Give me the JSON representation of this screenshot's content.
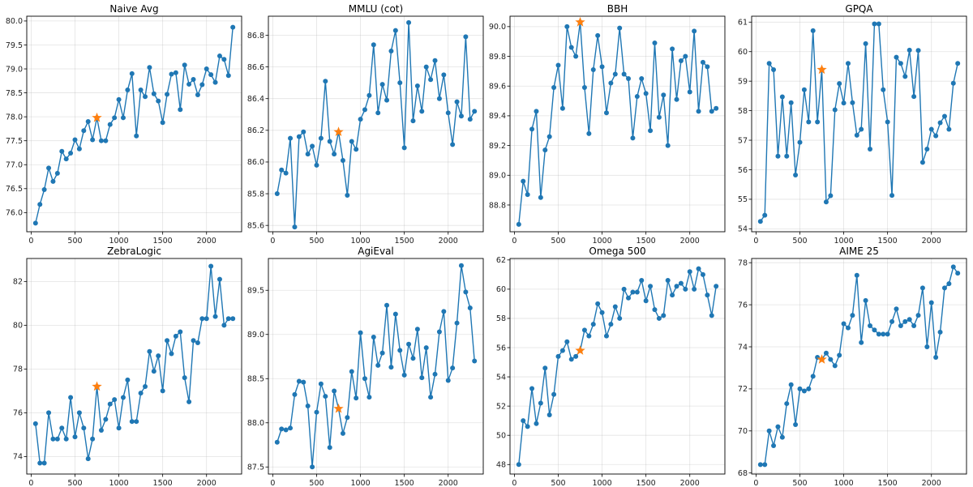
{
  "colors": {
    "series": "#1f77b4",
    "marker": "#ff7f0e"
  },
  "chart_data": [
    {
      "type": "line",
      "title": "Naive Avg",
      "grid": true,
      "xlim": [
        -50,
        2400
      ],
      "ylim": [
        75.6,
        80.1
      ],
      "xticks": [
        0,
        500,
        1000,
        1500,
        2000
      ],
      "xtick_labels": [
        "0",
        "500",
        "1000",
        "1500",
        "2000"
      ],
      "yticks": [
        76.0,
        76.5,
        77.0,
        77.5,
        78.0,
        78.5,
        79.0,
        79.5,
        80.0
      ],
      "ytick_labels": [
        "76.0",
        "76.5",
        "77.0",
        "77.5",
        "78.0",
        "78.5",
        "79.0",
        "79.5",
        "80.0"
      ],
      "x": [
        50,
        100,
        150,
        200,
        250,
        300,
        350,
        400,
        450,
        500,
        550,
        600,
        650,
        700,
        750,
        800,
        850,
        900,
        950,
        1000,
        1050,
        1100,
        1150,
        1200,
        1250,
        1300,
        1350,
        1400,
        1450,
        1500,
        1550,
        1600,
        1650,
        1700,
        1750,
        1800,
        1850,
        1900,
        1950,
        2000,
        2050,
        2100,
        2150,
        2200,
        2250,
        2300
      ],
      "y": [
        75.78,
        76.17,
        76.48,
        76.93,
        76.65,
        76.82,
        77.28,
        77.12,
        77.24,
        77.52,
        77.33,
        77.71,
        77.9,
        77.52,
        77.98,
        77.5,
        77.5,
        77.84,
        77.98,
        78.36,
        77.98,
        78.56,
        78.9,
        77.6,
        78.56,
        78.42,
        79.03,
        78.48,
        78.33,
        77.88,
        78.47,
        78.89,
        78.92,
        78.15,
        79.08,
        78.68,
        78.78,
        78.46,
        78.67,
        79.0,
        78.88,
        78.72,
        79.27,
        79.2,
        78.86,
        79.87
      ],
      "highlight": {
        "x": 750,
        "y": 77.98
      }
    },
    {
      "type": "line",
      "title": "MMLU (cot)",
      "grid": true,
      "xlim": [
        -50,
        2400
      ],
      "ylim": [
        85.56,
        86.92
      ],
      "xticks": [
        0,
        500,
        1000,
        1500,
        2000
      ],
      "xtick_labels": [
        "0",
        "500",
        "1000",
        "1500",
        "2000"
      ],
      "yticks": [
        85.6,
        85.8,
        86.0,
        86.2,
        86.4,
        86.6,
        86.8
      ],
      "ytick_labels": [
        "85.6",
        "85.8",
        "86.0",
        "86.2",
        "86.4",
        "86.6",
        "86.8"
      ],
      "x": [
        50,
        100,
        150,
        200,
        250,
        300,
        350,
        400,
        450,
        500,
        550,
        600,
        650,
        700,
        750,
        800,
        850,
        900,
        950,
        1000,
        1050,
        1100,
        1150,
        1200,
        1250,
        1300,
        1350,
        1400,
        1450,
        1500,
        1550,
        1600,
        1650,
        1700,
        1750,
        1800,
        1850,
        1900,
        1950,
        2000,
        2050,
        2100,
        2150,
        2200,
        2250,
        2300
      ],
      "y": [
        85.8,
        85.95,
        85.93,
        86.15,
        85.59,
        86.16,
        86.19,
        86.05,
        86.1,
        85.98,
        86.15,
        86.51,
        86.13,
        86.05,
        86.19,
        86.01,
        85.79,
        86.13,
        86.08,
        86.27,
        86.33,
        86.42,
        86.74,
        86.31,
        86.49,
        86.39,
        86.7,
        86.83,
        86.5,
        86.09,
        86.88,
        86.26,
        86.48,
        86.32,
        86.6,
        86.52,
        86.64,
        86.4,
        86.55,
        86.31,
        86.11,
        86.38,
        86.29,
        86.79,
        86.27,
        86.32
      ],
      "highlight": {
        "x": 750,
        "y": 86.19
      }
    },
    {
      "type": "line",
      "title": "BBH",
      "grid": true,
      "xlim": [
        -50,
        2400
      ],
      "ylim": [
        88.62,
        90.07
      ],
      "xticks": [
        0,
        500,
        1000,
        1500,
        2000
      ],
      "xtick_labels": [
        "0",
        "500",
        "1000",
        "1500",
        "2000"
      ],
      "yticks": [
        88.8,
        89.0,
        89.2,
        89.4,
        89.6,
        89.8,
        90.0
      ],
      "ytick_labels": [
        "88.8",
        "89.0",
        "89.2",
        "89.4",
        "89.6",
        "89.8",
        "90.0"
      ],
      "x": [
        50,
        100,
        150,
        200,
        250,
        300,
        350,
        400,
        450,
        500,
        550,
        600,
        650,
        700,
        750,
        800,
        850,
        900,
        950,
        1000,
        1050,
        1100,
        1150,
        1200,
        1250,
        1300,
        1350,
        1400,
        1450,
        1500,
        1550,
        1600,
        1650,
        1700,
        1750,
        1800,
        1850,
        1900,
        1950,
        2000,
        2050,
        2100,
        2150,
        2200,
        2250,
        2300
      ],
      "y": [
        88.67,
        88.96,
        88.87,
        89.31,
        89.43,
        88.85,
        89.17,
        89.26,
        89.59,
        89.74,
        89.45,
        90.0,
        89.86,
        89.8,
        90.03,
        89.59,
        89.28,
        89.71,
        89.94,
        89.73,
        89.42,
        89.62,
        89.68,
        89.99,
        89.68,
        89.65,
        89.25,
        89.53,
        89.65,
        89.55,
        89.3,
        89.89,
        89.39,
        89.54,
        89.2,
        89.85,
        89.51,
        89.77,
        89.8,
        89.56,
        89.97,
        89.43,
        89.76,
        89.73,
        89.43,
        89.45
      ],
      "highlight": {
        "x": 750,
        "y": 90.03
      }
    },
    {
      "type": "line",
      "title": "GPQA",
      "grid": true,
      "xlim": [
        -50,
        2400
      ],
      "ylim": [
        53.9,
        61.2
      ],
      "xticks": [
        0,
        500,
        1000,
        1500,
        2000
      ],
      "xtick_labels": [
        "0",
        "500",
        "1000",
        "1500",
        "2000"
      ],
      "yticks": [
        54,
        55,
        56,
        57,
        58,
        59,
        60,
        61
      ],
      "ytick_labels": [
        "54",
        "55",
        "56",
        "57",
        "58",
        "59",
        "60",
        "61"
      ],
      "x": [
        50,
        100,
        150,
        200,
        250,
        300,
        350,
        400,
        450,
        500,
        550,
        600,
        650,
        700,
        750,
        800,
        850,
        900,
        950,
        1000,
        1050,
        1100,
        1150,
        1200,
        1250,
        1300,
        1350,
        1400,
        1450,
        1500,
        1550,
        1600,
        1650,
        1700,
        1750,
        1800,
        1850,
        1900,
        1950,
        2000,
        2050,
        2100,
        2150,
        2200,
        2250,
        2300
      ],
      "y": [
        54.25,
        54.46,
        59.6,
        59.39,
        56.46,
        58.47,
        56.46,
        58.27,
        55.82,
        56.93,
        58.71,
        57.62,
        60.71,
        57.62,
        59.39,
        54.91,
        55.12,
        58.03,
        58.92,
        58.26,
        59.6,
        58.27,
        57.17,
        57.37,
        60.27,
        56.7,
        60.94,
        60.94,
        58.71,
        57.62,
        55.13,
        59.81,
        59.6,
        59.16,
        60.05,
        58.48,
        60.04,
        56.25,
        56.7,
        57.37,
        57.15,
        57.59,
        57.81,
        57.37,
        58.93,
        59.6
      ],
      "highlight": {
        "x": 750,
        "y": 59.39
      }
    },
    {
      "type": "line",
      "title": "ZebraLogic",
      "grid": true,
      "xlim": [
        -50,
        2400
      ],
      "ylim": [
        73.2,
        83.05
      ],
      "xticks": [
        0,
        500,
        1000,
        1500,
        2000
      ],
      "xtick_labels": [
        "0",
        "500",
        "1000",
        "1500",
        "2000"
      ],
      "yticks": [
        74,
        76,
        78,
        80,
        82
      ],
      "ytick_labels": [
        "74",
        "76",
        "78",
        "80",
        "82"
      ],
      "x": [
        50,
        100,
        150,
        200,
        250,
        300,
        350,
        400,
        450,
        500,
        550,
        600,
        650,
        700,
        750,
        800,
        850,
        900,
        950,
        1000,
        1050,
        1100,
        1150,
        1200,
        1250,
        1300,
        1350,
        1400,
        1450,
        1500,
        1550,
        1600,
        1650,
        1700,
        1750,
        1800,
        1850,
        1900,
        1950,
        2000,
        2050,
        2100,
        2150,
        2200,
        2250,
        2300
      ],
      "y": [
        75.5,
        73.7,
        73.7,
        76.0,
        74.8,
        74.8,
        75.3,
        74.8,
        76.7,
        74.9,
        76.0,
        75.3,
        73.9,
        74.8,
        77.2,
        75.2,
        75.7,
        76.4,
        76.6,
        75.3,
        76.7,
        77.5,
        75.6,
        75.6,
        76.9,
        77.2,
        78.8,
        77.9,
        78.6,
        77.0,
        79.3,
        78.7,
        79.5,
        79.7,
        77.6,
        76.5,
        79.3,
        79.2,
        80.3,
        80.3,
        82.7,
        80.4,
        82.1,
        80.0,
        80.3,
        80.3
      ],
      "highlight": {
        "x": 750,
        "y": 77.2
      }
    },
    {
      "type": "line",
      "title": "AgiEval",
      "grid": true,
      "xlim": [
        -50,
        2400
      ],
      "ylim": [
        87.42,
        89.86
      ],
      "xticks": [
        0,
        500,
        1000,
        1500,
        2000
      ],
      "xtick_labels": [
        "0",
        "500",
        "1000",
        "1500",
        "2000"
      ],
      "yticks": [
        87.5,
        88.0,
        88.5,
        89.0,
        89.5
      ],
      "ytick_labels": [
        "87.5",
        "88.0",
        "88.5",
        "89.0",
        "89.5"
      ],
      "x": [
        50,
        100,
        150,
        200,
        250,
        300,
        350,
        400,
        450,
        500,
        550,
        600,
        650,
        700,
        750,
        800,
        850,
        900,
        950,
        1000,
        1050,
        1100,
        1150,
        1200,
        1250,
        1300,
        1350,
        1400,
        1450,
        1500,
        1550,
        1600,
        1650,
        1700,
        1750,
        1800,
        1850,
        1900,
        1950,
        2000,
        2050,
        2100,
        2150,
        2200,
        2250,
        2300
      ],
      "y": [
        87.78,
        87.93,
        87.92,
        87.94,
        88.32,
        88.47,
        88.46,
        88.19,
        87.5,
        88.12,
        88.44,
        88.3,
        87.72,
        88.36,
        88.16,
        87.88,
        88.06,
        88.58,
        88.28,
        89.02,
        88.5,
        88.29,
        88.97,
        88.65,
        88.79,
        89.33,
        88.63,
        89.23,
        88.82,
        88.54,
        88.89,
        88.73,
        89.06,
        88.51,
        88.85,
        88.29,
        88.55,
        89.03,
        89.26,
        88.48,
        88.62,
        89.13,
        89.78,
        89.48,
        89.3,
        88.7
      ],
      "highlight": {
        "x": 750,
        "y": 88.16
      }
    },
    {
      "type": "line",
      "title": "Omega 500",
      "grid": true,
      "xlim": [
        -50,
        2400
      ],
      "ylim": [
        47.35,
        62.1
      ],
      "xticks": [
        0,
        500,
        1000,
        1500,
        2000
      ],
      "xtick_labels": [
        "0",
        "500",
        "1000",
        "1500",
        "2000"
      ],
      "yticks": [
        48,
        50,
        52,
        54,
        56,
        58,
        60,
        62
      ],
      "ytick_labels": [
        "48",
        "50",
        "52",
        "54",
        "56",
        "58",
        "60",
        "62"
      ],
      "x": [
        50,
        100,
        150,
        200,
        250,
        300,
        350,
        400,
        450,
        500,
        550,
        600,
        650,
        700,
        750,
        800,
        850,
        900,
        950,
        1000,
        1050,
        1100,
        1150,
        1200,
        1250,
        1300,
        1350,
        1400,
        1450,
        1500,
        1550,
        1600,
        1650,
        1700,
        1750,
        1800,
        1850,
        1900,
        1950,
        2000,
        2050,
        2100,
        2150,
        2200,
        2250,
        2300
      ],
      "y": [
        48.0,
        51.0,
        50.6,
        53.2,
        50.8,
        52.2,
        54.6,
        51.4,
        52.8,
        55.4,
        55.8,
        56.4,
        55.2,
        55.4,
        55.8,
        57.2,
        56.8,
        57.6,
        59.0,
        58.4,
        56.8,
        57.6,
        58.8,
        58.0,
        60.0,
        59.4,
        59.8,
        59.8,
        60.6,
        59.2,
        60.2,
        58.6,
        58.0,
        58.2,
        60.6,
        59.6,
        60.2,
        60.4,
        60.0,
        61.2,
        60.0,
        61.4,
        61.0,
        59.6,
        58.2,
        60.2
      ],
      "highlight": {
        "x": 750,
        "y": 55.8
      }
    },
    {
      "type": "line",
      "title": "AIME 25",
      "grid": true,
      "xlim": [
        -50,
        2400
      ],
      "ylim": [
        67.95,
        78.2
      ],
      "xticks": [
        0,
        500,
        1000,
        1500,
        2000
      ],
      "xtick_labels": [
        "0",
        "500",
        "1000",
        "1500",
        "2000"
      ],
      "yticks": [
        68,
        70,
        72,
        74,
        76,
        78
      ],
      "ytick_labels": [
        "68",
        "70",
        "72",
        "74",
        "76",
        "78"
      ],
      "x": [
        50,
        100,
        150,
        200,
        250,
        300,
        350,
        400,
        450,
        500,
        550,
        600,
        650,
        700,
        750,
        800,
        850,
        900,
        950,
        1000,
        1050,
        1100,
        1150,
        1200,
        1250,
        1300,
        1350,
        1400,
        1450,
        1500,
        1550,
        1600,
        1650,
        1700,
        1750,
        1800,
        1850,
        1900,
        1950,
        2000,
        2050,
        2100,
        2150,
        2200,
        2250,
        2300
      ],
      "y": [
        68.4,
        68.4,
        70.0,
        69.3,
        70.2,
        69.7,
        71.3,
        72.2,
        70.3,
        72.0,
        71.9,
        72.0,
        72.6,
        73.5,
        73.4,
        73.7,
        73.4,
        73.1,
        73.6,
        75.1,
        74.9,
        75.5,
        77.4,
        74.2,
        76.2,
        75.0,
        74.8,
        74.6,
        74.6,
        74.6,
        75.2,
        75.8,
        75.0,
        75.2,
        75.3,
        75.0,
        75.5,
        76.8,
        74.0,
        76.1,
        73.5,
        74.7,
        76.8,
        77.0,
        77.8,
        77.5
      ],
      "highlight": {
        "x": 750,
        "y": 73.4
      }
    }
  ]
}
